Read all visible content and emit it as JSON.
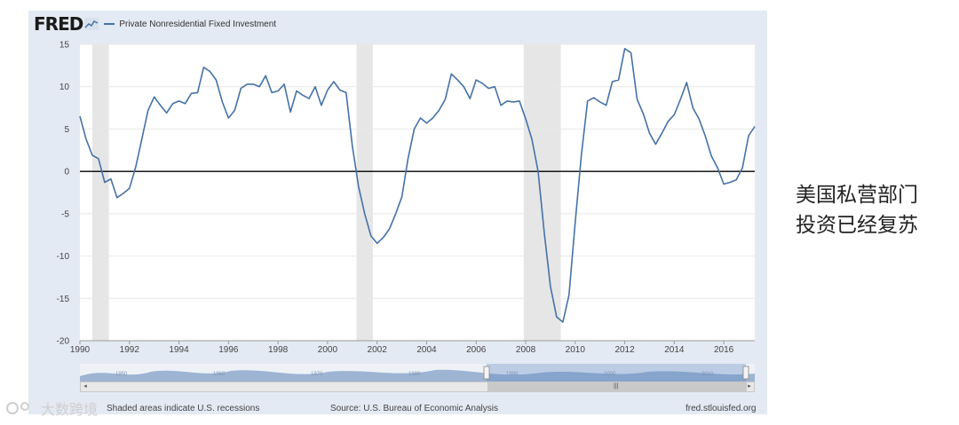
{
  "header": {
    "logo": "FRED",
    "series_name": "Private Nonresidential Fixed Investment"
  },
  "chart_data": {
    "type": "line",
    "title": "Private Nonresidential Fixed Investment",
    "xlim": [
      1990,
      2017.25
    ],
    "ylim": [
      -20,
      15
    ],
    "y_ticks": [
      15,
      10,
      5,
      0,
      -5,
      -10,
      -15,
      -20
    ],
    "x_ticks": [
      "1990",
      "1992",
      "1994",
      "1996",
      "1998",
      "2000",
      "2002",
      "2004",
      "2006",
      "2008",
      "2010",
      "2012",
      "2014",
      "2016"
    ],
    "grid": "horizontal",
    "recessions": [
      [
        1990.5,
        1991.17
      ],
      [
        2001.17,
        2001.83
      ],
      [
        2007.92,
        2009.42
      ]
    ],
    "series": [
      {
        "name": "Private Nonresidential Fixed Investment",
        "color": "#4572a7",
        "x": [
          1990,
          1990.25,
          1990.5,
          1990.75,
          1991,
          1991.25,
          1991.5,
          1991.75,
          1992,
          1992.25,
          1992.5,
          1992.75,
          1993,
          1993.25,
          1993.5,
          1993.75,
          1994,
          1994.25,
          1994.5,
          1994.75,
          1995,
          1995.25,
          1995.5,
          1995.75,
          1996,
          1996.25,
          1996.5,
          1996.75,
          1997,
          1997.25,
          1997.5,
          1997.75,
          1998,
          1998.25,
          1998.5,
          1998.75,
          1999,
          1999.25,
          1999.5,
          1999.75,
          2000,
          2000.25,
          2000.5,
          2000.75,
          2001,
          2001.25,
          2001.5,
          2001.75,
          2002,
          2002.25,
          2002.5,
          2002.75,
          2003,
          2003.25,
          2003.5,
          2003.75,
          2004,
          2004.25,
          2004.5,
          2004.75,
          2005,
          2005.25,
          2005.5,
          2005.75,
          2006,
          2006.25,
          2006.5,
          2006.75,
          2007,
          2007.25,
          2007.5,
          2007.75,
          2008,
          2008.25,
          2008.5,
          2008.75,
          2009,
          2009.25,
          2009.5,
          2009.75,
          2010,
          2010.25,
          2010.5,
          2010.75,
          2011,
          2011.25,
          2011.5,
          2011.75,
          2012,
          2012.25,
          2012.5,
          2012.75,
          2013,
          2013.25,
          2013.5,
          2013.75,
          2014,
          2014.25,
          2014.5,
          2014.75,
          2015,
          2015.25,
          2015.5,
          2015.75,
          2016,
          2016.25,
          2016.5,
          2016.75,
          2017,
          2017.25
        ],
        "values": [
          6.5,
          3.8,
          1.9,
          1.5,
          -1.3,
          -0.9,
          -3.1,
          -2.6,
          -2.0,
          0.5,
          3.8,
          7.2,
          8.8,
          7.8,
          6.9,
          8.0,
          8.3,
          8.0,
          9.2,
          9.3,
          12.3,
          11.8,
          10.8,
          8.2,
          6.3,
          7.2,
          9.8,
          10.3,
          10.3,
          10.0,
          11.3,
          9.3,
          9.5,
          10.3,
          7.0,
          9.5,
          9.0,
          8.6,
          10.0,
          7.8,
          9.6,
          10.6,
          9.6,
          9.3,
          3.0,
          -1.8,
          -5.0,
          -7.6,
          -8.5,
          -7.8,
          -6.8,
          -5.0,
          -3.0,
          1.5,
          5.0,
          6.3,
          5.7,
          6.3,
          7.2,
          8.5,
          11.5,
          10.8,
          10.0,
          8.6,
          10.8,
          10.4,
          9.8,
          10.0,
          7.8,
          8.3,
          8.2,
          8.3,
          6.2,
          3.8,
          0.0,
          -7.2,
          -13.6,
          -17.2,
          -17.8,
          -14.6,
          -6.0,
          2.0,
          8.3,
          8.7,
          8.2,
          7.8,
          10.6,
          10.8,
          14.5,
          14.0,
          8.5,
          6.8,
          4.5,
          3.2,
          4.5,
          5.9,
          6.7,
          8.5,
          10.5,
          7.5,
          6.2,
          4.2,
          1.8,
          0.4,
          -1.5,
          -1.3,
          -1.0,
          0.4,
          4.2,
          5.3
        ]
      }
    ]
  },
  "navigator": {
    "labels": [
      "1950",
      "1960",
      "1970",
      "1980",
      "1990",
      "2000",
      "2010"
    ]
  },
  "footer": {
    "recession_note": "Shaded areas indicate U.S. recessions",
    "source": "Source: U.S. Bureau of Economic Analysis",
    "url": "fred.stlouisfed.org"
  },
  "annotation": {
    "line1": "美国私营部门",
    "line2": "投资已经复苏"
  },
  "watermark": "大数跨境",
  "colors": {
    "line": "#4572a7",
    "recession": "#e6e6e6",
    "frame": "#e3eaf3",
    "zero_line": "#000000"
  }
}
